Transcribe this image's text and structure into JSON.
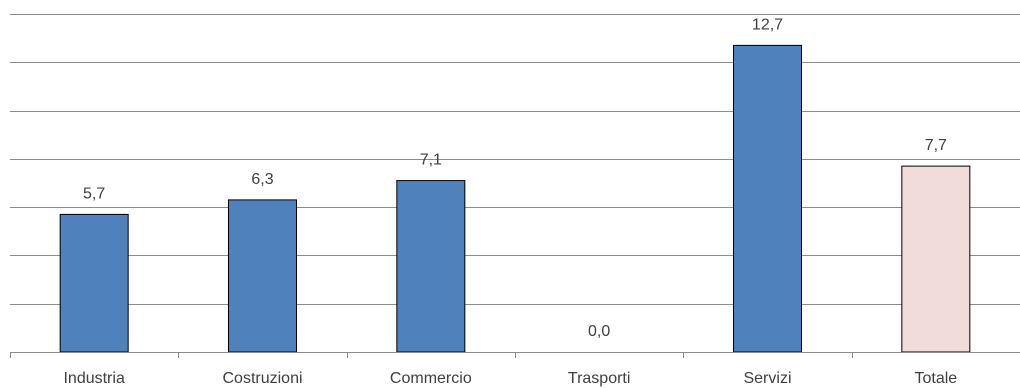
{
  "chart_data": {
    "type": "bar",
    "categories": [
      "Industria",
      "Costruzioni",
      "Commercio",
      "Trasporti",
      "Servizi",
      "Totale"
    ],
    "values": [
      5.7,
      6.3,
      7.1,
      0.0,
      12.7,
      7.7
    ],
    "value_labels": [
      "5,7",
      "6,3",
      "7,1",
      "0,0",
      "12,7",
      "7,7"
    ],
    "bar_colors": [
      "#4f81bd",
      "#4f81bd",
      "#4f81bd",
      "#4f81bd",
      "#4f81bd",
      "#f2dcdb"
    ],
    "ylim": [
      0,
      14
    ],
    "y_grid_step": 2,
    "grid": true,
    "y_tick_labels_shown": false,
    "legend": false
  }
}
